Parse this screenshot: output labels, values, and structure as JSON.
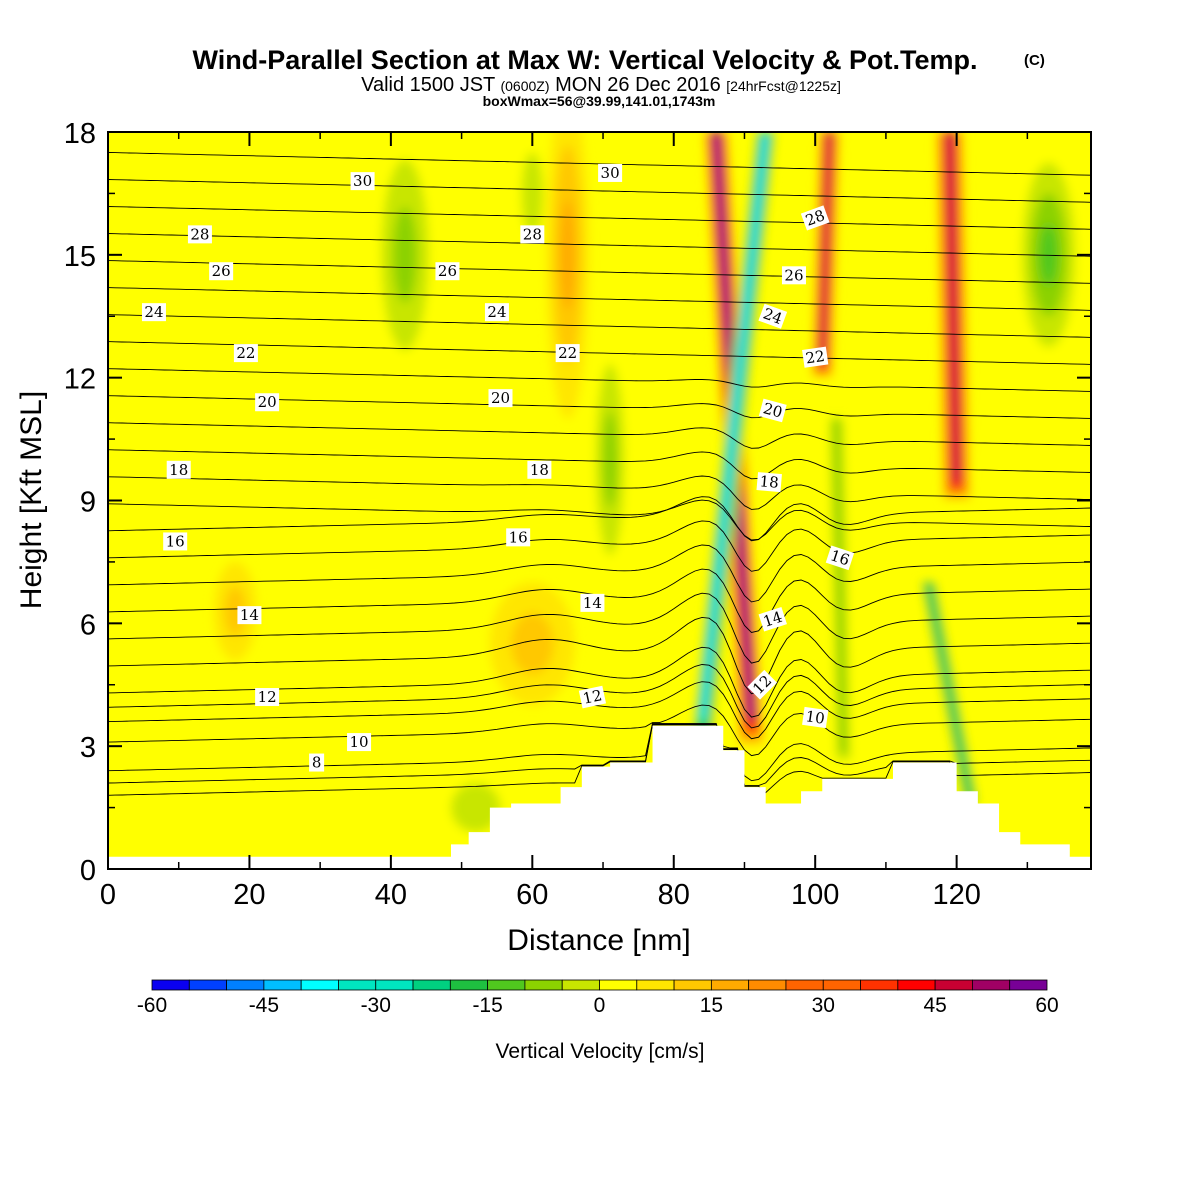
{
  "header": {
    "title": "Wind-Parallel Section at Max W: Vertical Velocity & Pot.Temp.",
    "copyright": "(C)",
    "valid_prefix": "Valid 1500 JST",
    "valid_utc": "(0600Z)",
    "valid_date": "MON 26 Dec 2016",
    "forecast": "[24hrFcst@1225z]",
    "box_info": "boxWmax=56@39.99,141.01,1743m"
  },
  "colors": {
    "terrain": "#ffffff",
    "contour_line": "#000000",
    "scale": [
      "#0a00f0",
      "#0040ff",
      "#0080ff",
      "#00bfff",
      "#00ffff",
      "#00e6c0",
      "#00d080",
      "#1ec040",
      "#50c81e",
      "#8cd200",
      "#c8e600",
      "#ffff00",
      "#ffe600",
      "#ffc800",
      "#ffaa00",
      "#ff8c00",
      "#ff6400",
      "#ff3200",
      "#ff0000",
      "#c80032",
      "#a00064",
      "#780096"
    ]
  },
  "chart_data": {
    "type": "heatmap",
    "xlabel": "Distance [nm]",
    "ylabel": "Height [Kft MSL]",
    "xlim": [
      0,
      139
    ],
    "ylim": [
      0,
      18
    ],
    "x_ticks": [
      0,
      20,
      40,
      60,
      80,
      100,
      120
    ],
    "y_ticks": [
      0,
      3,
      6,
      9,
      12,
      15,
      18
    ],
    "colorbar": {
      "label": "Vertical Velocity [cm/s]",
      "min": -60,
      "max": 60,
      "step": 5,
      "tick_labels": [
        "-60",
        "-45",
        "-30",
        "-15",
        "0",
        "15",
        "30",
        "45",
        "60"
      ]
    },
    "terrain_profile": [
      [
        0,
        0.3
      ],
      [
        48,
        0.3
      ],
      [
        48.5,
        0.6
      ],
      [
        51,
        0.9
      ],
      [
        54,
        1.5
      ],
      [
        57,
        1.6
      ],
      [
        64,
        2.0
      ],
      [
        67,
        2.5
      ],
      [
        71,
        2.6
      ],
      [
        77,
        3.5
      ],
      [
        87,
        2.9
      ],
      [
        90,
        2.0
      ],
      [
        93,
        1.6
      ],
      [
        98,
        1.9
      ],
      [
        101,
        2.2
      ],
      [
        106,
        2.2
      ],
      [
        111,
        2.6
      ],
      [
        120,
        1.9
      ],
      [
        123,
        1.6
      ],
      [
        126,
        0.9
      ],
      [
        129,
        0.6
      ],
      [
        136,
        0.3
      ],
      [
        139,
        0.3
      ]
    ],
    "vertical_velocity_features": [
      {
        "sign": "updraft",
        "kind": "plume",
        "max": 56,
        "x_base": 91,
        "z_base": 3.0,
        "x_top": 86,
        "z_top": 18.0,
        "width_nm": 3.5
      },
      {
        "sign": "downdraft",
        "kind": "plume",
        "min": -45,
        "x_base": 84,
        "z_base": 3.0,
        "x_top": 93,
        "z_top": 18.0,
        "width_nm": 3.0
      },
      {
        "sign": "updraft",
        "kind": "plume",
        "max": 45,
        "x_base": 101,
        "z_base": 12.0,
        "x_top": 102,
        "z_top": 18.0,
        "width_nm": 3.0
      },
      {
        "sign": "downdraft",
        "kind": "plume",
        "min": -15,
        "x_base": 104,
        "z_base": 2.5,
        "x_top": 103,
        "z_top": 11.0,
        "width_nm": 3.0
      },
      {
        "sign": "updraft",
        "kind": "plume",
        "max": 45,
        "x_base": 120,
        "z_base": 9.0,
        "x_top": 119,
        "z_top": 18.0,
        "width_nm": 4.0
      },
      {
        "sign": "downdraft",
        "kind": "plume",
        "min": -30,
        "x_base": 122,
        "z_base": 1.5,
        "x_top": 116,
        "z_top": 7.0,
        "width_nm": 2.5
      },
      {
        "sign": "downdraft",
        "kind": "blob",
        "min": -20,
        "x": 133,
        "z": 15,
        "rx": 5,
        "rz": 3.0
      },
      {
        "sign": "downdraft",
        "kind": "blob",
        "min": -15,
        "x": 42,
        "z": 15,
        "rx": 5,
        "rz": 3.5
      },
      {
        "sign": "downdraft",
        "kind": "blob",
        "min": -10,
        "x": 60,
        "z": 16.5,
        "rx": 3,
        "rz": 2.0
      },
      {
        "sign": "updraft",
        "kind": "blob",
        "max": 15,
        "x": 65,
        "z": 15,
        "rx": 3,
        "rz": 4.0
      },
      {
        "sign": "downdraft",
        "kind": "blob",
        "min": -15,
        "x": 71,
        "z": 10,
        "rx": 3,
        "rz": 3.5
      },
      {
        "sign": "updraft",
        "kind": "blob",
        "max": 12,
        "x": 60,
        "z": 5.5,
        "rx": 6,
        "rz": 1.5
      },
      {
        "sign": "downdraft",
        "kind": "blob",
        "min": -12,
        "x": 52,
        "z": 1.5,
        "rx": 7,
        "rz": 1.2
      },
      {
        "sign": "updraft",
        "kind": "blob",
        "max": 10,
        "x": 18,
        "z": 6.3,
        "rx": 3,
        "rz": 1.2
      },
      {
        "sign": "downdraft",
        "kind": "blob",
        "min": -8,
        "x": 12,
        "z": 17,
        "rx": 5,
        "rz": 1.2
      }
    ],
    "potential_temperature_labels": [
      {
        "text": "30",
        "x": 36,
        "z": 16.8
      },
      {
        "text": "30",
        "x": 71,
        "z": 17.0
      },
      {
        "text": "28",
        "x": 13,
        "z": 15.5
      },
      {
        "text": "28",
        "x": 60,
        "z": 15.5
      },
      {
        "text": "28",
        "x": 100,
        "z": 15.9,
        "rot": -20
      },
      {
        "text": "26",
        "x": 16,
        "z": 14.6
      },
      {
        "text": "26",
        "x": 48,
        "z": 14.6
      },
      {
        "text": "26",
        "x": 97,
        "z": 14.5
      },
      {
        "text": "24",
        "x": 6.5,
        "z": 13.6
      },
      {
        "text": "24",
        "x": 55,
        "z": 13.6
      },
      {
        "text": "24",
        "x": 94,
        "z": 13.5,
        "rot": 20
      },
      {
        "text": "22",
        "x": 19.5,
        "z": 12.6
      },
      {
        "text": "22",
        "x": 65,
        "z": 12.6
      },
      {
        "text": "22",
        "x": 100,
        "z": 12.5,
        "rot": -8
      },
      {
        "text": "20",
        "x": 22.5,
        "z": 11.4
      },
      {
        "text": "20",
        "x": 55.5,
        "z": 11.5
      },
      {
        "text": "20",
        "x": 94,
        "z": 11.2,
        "rot": 15
      },
      {
        "text": "18",
        "x": 10,
        "z": 9.75
      },
      {
        "text": "18",
        "x": 61,
        "z": 9.75
      },
      {
        "text": "18",
        "x": 93.5,
        "z": 9.45,
        "rot": 5
      },
      {
        "text": "16",
        "x": 9.5,
        "z": 8.0
      },
      {
        "text": "16",
        "x": 58,
        "z": 8.1
      },
      {
        "text": "16",
        "x": 103.5,
        "z": 7.6,
        "rot": 18
      },
      {
        "text": "14",
        "x": 20,
        "z": 6.2
      },
      {
        "text": "14",
        "x": 68.5,
        "z": 6.5
      },
      {
        "text": "14",
        "x": 94,
        "z": 6.1,
        "rot": -18
      },
      {
        "text": "12",
        "x": 22.5,
        "z": 4.2
      },
      {
        "text": "12",
        "x": 68.5,
        "z": 4.2,
        "rot": -12
      },
      {
        "text": "12",
        "x": 92.5,
        "z": 4.5,
        "rot": -45
      },
      {
        "text": "10",
        "x": 35.5,
        "z": 3.1
      },
      {
        "text": "10",
        "x": 100,
        "z": 3.7,
        "rot": 8
      },
      {
        "text": "8",
        "x": 29.5,
        "z": 2.6
      }
    ]
  }
}
